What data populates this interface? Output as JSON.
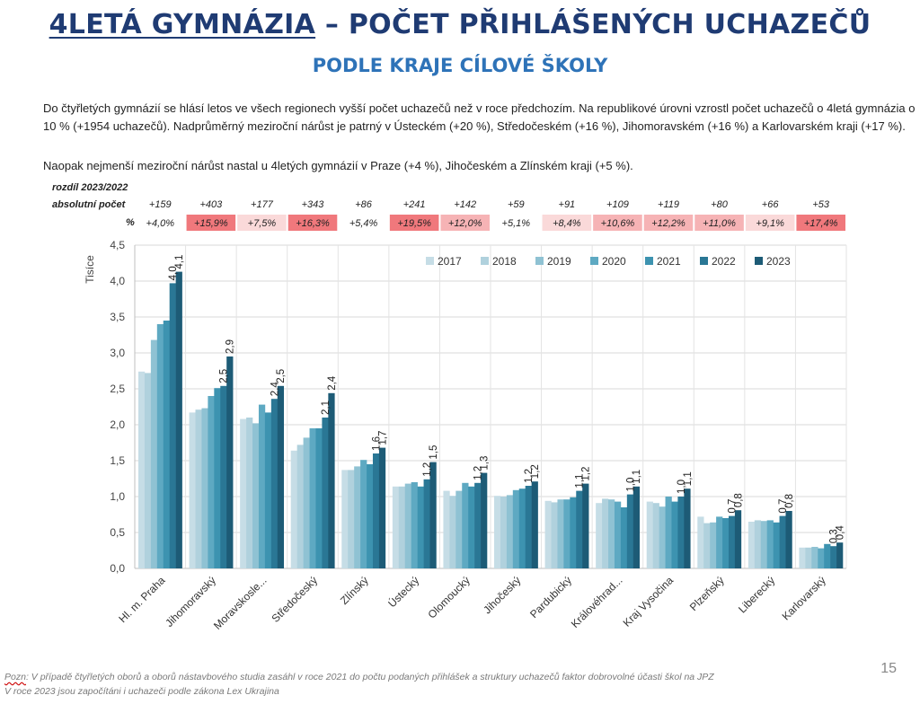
{
  "title_part1": "4LETÁ GYMNÁZIA",
  "title_part2": " – POČET PŘIHLÁŠENÝCH UCHAZEČŮ",
  "subtitle": "PODLE KRAJE CÍLOVÉ ŠKOLY",
  "paragraph1": "Do čtyřletých gymnázií se hlásí letos ve všech regionech vyšší počet uchazečů než v roce předchozím. Na republikové úrovni vzrostl počet uchazečů o 4letá gymnázia o 10 % (+1954 uchazečů). Nadprůměrný meziroční nárůst je patrný v Ústeckém (+20 %), Středočeském (+16 %), Jihomoravském (+16 %) a Karlovarském kraji (+17 %).",
  "paragraph2": "Naopak nejmenší meziroční nárůst nastal u 4letých gymnázií v Praze (+4 %), Jihočeském a Zlínském kraji (+5 %).",
  "table_labels": {
    "header": "rozdíl 2023/2022",
    "abs": "absolutní počet",
    "pct": "%"
  },
  "diff_abs": [
    "+159",
    "+403",
    "+177",
    "+343",
    "+86",
    "+241",
    "+142",
    "+59",
    "+91",
    "+109",
    "+119",
    "+80",
    "+66",
    "+53"
  ],
  "diff_pct": [
    "+4,0%",
    "+15,9%",
    "+7,5%",
    "+16,3%",
    "+5,4%",
    "+19,5%",
    "+12,0%",
    "+5,1%",
    "+8,4%",
    "+10,6%",
    "+12,2%",
    "+11,0%",
    "+9,1%",
    "+17,4%"
  ],
  "diff_pct_values": [
    4.0,
    15.9,
    7.5,
    16.3,
    5.4,
    19.5,
    12.0,
    5.1,
    8.4,
    10.6,
    12.2,
    11.0,
    9.1,
    17.4
  ],
  "chart_data": {
    "type": "bar",
    "ylabel": "Tisíce",
    "ylim": [
      0,
      4.5
    ],
    "yticks": [
      "0,0",
      "0,5",
      "1,0",
      "1,5",
      "2,0",
      "2,5",
      "3,0",
      "3,5",
      "4,0",
      "4,5"
    ],
    "grid": true,
    "legend_position": "top-right",
    "categories": [
      "Hl. m. Praha",
      "Jihomoravský",
      "Moravskosle...",
      "Středočeský",
      "Zlínský",
      "Ústecký",
      "Olomoucký",
      "Jihočeský",
      "Pardubický",
      "Královéhrad...",
      "Kraj Vysočina",
      "Plzeňský",
      "Liberecký",
      "Karlovarský"
    ],
    "series": [
      {
        "name": "2017",
        "color": "#c6dde6",
        "values": [
          2.74,
          2.17,
          2.08,
          1.64,
          1.37,
          1.14,
          1.08,
          1.01,
          0.94,
          0.91,
          0.93,
          0.72,
          0.65,
          0.29
        ]
      },
      {
        "name": "2018",
        "color": "#b0d1dd",
        "values": [
          2.72,
          2.21,
          2.1,
          1.72,
          1.37,
          1.14,
          1.01,
          1.0,
          0.92,
          0.97,
          0.91,
          0.63,
          0.67,
          0.29
        ]
      },
      {
        "name": "2019",
        "color": "#8fc2d3",
        "values": [
          3.18,
          2.23,
          2.02,
          1.82,
          1.42,
          1.18,
          1.08,
          1.02,
          0.96,
          0.96,
          0.86,
          0.64,
          0.66,
          0.3
        ]
      },
      {
        "name": "2020",
        "color": "#5ea9c2",
        "values": [
          3.4,
          2.4,
          2.28,
          1.95,
          1.51,
          1.2,
          1.19,
          1.09,
          0.96,
          0.93,
          1.0,
          0.72,
          0.67,
          0.28
        ]
      },
      {
        "name": "2021",
        "color": "#3d93b0",
        "values": [
          3.45,
          2.51,
          2.17,
          1.95,
          1.45,
          1.14,
          1.14,
          1.11,
          0.99,
          0.85,
          0.93,
          0.7,
          0.64,
          0.34
        ]
      },
      {
        "name": "2022",
        "color": "#2a7795",
        "values": [
          3.97,
          2.54,
          2.36,
          2.1,
          1.6,
          1.24,
          1.19,
          1.15,
          1.08,
          1.03,
          1.0,
          0.73,
          0.73,
          0.31
        ]
      },
      {
        "name": "2023",
        "color": "#1d5b76",
        "values": [
          4.13,
          2.95,
          2.54,
          2.44,
          1.68,
          1.48,
          1.33,
          1.21,
          1.18,
          1.14,
          1.11,
          0.81,
          0.8,
          0.36
        ]
      }
    ],
    "data_labels": [
      [
        "4,0",
        "4,1"
      ],
      [
        "2,5",
        "2,9"
      ],
      [
        "2,4",
        "2,5"
      ],
      [
        "2,1",
        "2,4"
      ],
      [
        "1,6",
        "1,7"
      ],
      [
        "1,2",
        "1,5"
      ],
      [
        "1,2",
        "1,3"
      ],
      [
        "1,2",
        "1,2"
      ],
      [
        "1,1",
        "1,2"
      ],
      [
        "1,0",
        "1,1"
      ],
      [
        "1,0",
        "1,1"
      ],
      [
        "0,7",
        "0,8"
      ],
      [
        "0,7",
        "0,8"
      ],
      [
        "0,3",
        "0,4"
      ]
    ]
  },
  "footnote_pozn": "Pozn",
  "footnote_line1": ": V případě čtyřletých oborů a oborů nástavbového studia zasáhl v roce 2021 do počtu podaných přihlášek a struktury uchazečů faktor dobrovolné účasti škol na JPZ",
  "footnote_line2": "V roce 2023 jsou započítáni i uchazeči podle zákona Lex Ukrajina",
  "page_number": "15"
}
